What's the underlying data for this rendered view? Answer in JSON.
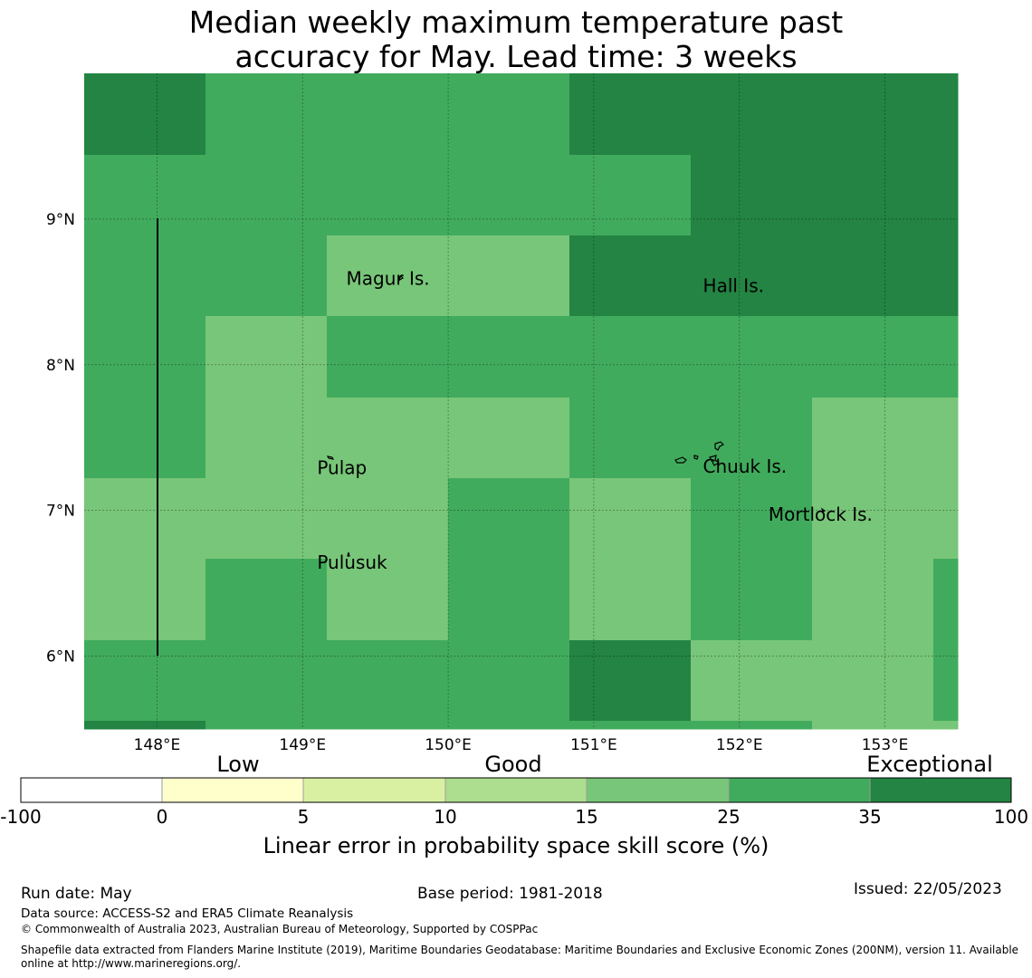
{
  "title": {
    "line1": "Median weekly maximum temperature past",
    "line2": "accuracy for May. Lead time: 3 weeks"
  },
  "map": {
    "lon_ticks": [
      "148°E",
      "149°E",
      "150°E",
      "151°E",
      "152°E",
      "153°E"
    ],
    "lat_ticks": [
      "9°N",
      "8°N",
      "7°N",
      "6°N"
    ],
    "lon_values": [
      148,
      149,
      150,
      151,
      152,
      153
    ],
    "lat_values": [
      9,
      8,
      7,
      6
    ],
    "extent": {
      "lon_min": 147.5,
      "lon_max": 153.5,
      "lat_min": 5.5,
      "lat_max": 10.0
    },
    "places": [
      {
        "name": "Magur Is.",
        "lon": 149.3,
        "lat": 8.55
      },
      {
        "name": "Hall Is.",
        "lon": 151.75,
        "lat": 8.5
      },
      {
        "name": "Pulap",
        "lon": 149.1,
        "lat": 7.25
      },
      {
        "name": "Chuuk Is.",
        "lon": 151.75,
        "lat": 7.26
      },
      {
        "name": "Mortlock Is.",
        "lon": 152.2,
        "lat": 6.93
      },
      {
        "name": "Pulusuk",
        "lon": 149.1,
        "lat": 6.6
      }
    ]
  },
  "colors": {
    "c35_100": "#238443",
    "c25_35": "#41ab5d",
    "c15_25": "#78c679",
    "c10_15": "#addd8e",
    "c5_10": "#d9f0a3",
    "c0_5": "#ffffcc",
    "cneg": "#ffffff"
  },
  "legend": {
    "categories": [
      "Low",
      "Good",
      "Exceptional"
    ],
    "ticks": [
      "-100",
      "0",
      "5",
      "10",
      "15",
      "25",
      "35",
      "100"
    ],
    "label": "Linear error in probability space skill score (%)"
  },
  "footer": {
    "run_date": "Run date: May",
    "base_period": "Base period: 1981-2018",
    "issued": "Issued: 22/05/2023",
    "data_source": "Data source: ACCESS-S2 and ERA5 Climate Reanalysis",
    "copyright": "© Commonwealth of Australia 2023, Australian Bureau of Meteorology, Supported by COSPPac",
    "shapefile": "Shapefile data extracted from Flanders Marine Institute (2019), Maritime Boundaries Geodatabase: Maritime Boundaries and Exclusive Economic Zones (200NM), version 11. Available online at http://www.marineregions.org/."
  }
}
